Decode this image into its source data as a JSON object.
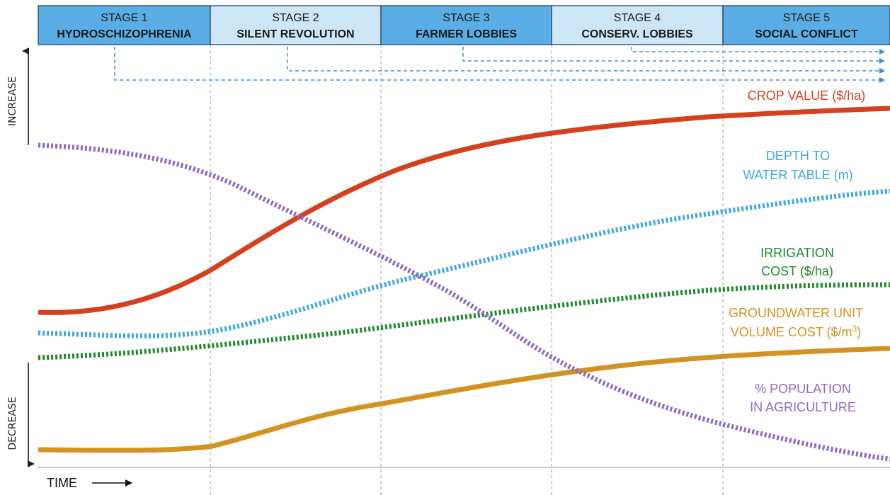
{
  "stages": [
    {
      "number": "STAGE 1",
      "name": "HYDROSCHIZOPHRENIA",
      "fill": "#5aaee5"
    },
    {
      "number": "STAGE 2",
      "name": "SILENT REVOLUTION",
      "fill": "#cde6f8"
    },
    {
      "number": "STAGE 3",
      "name": "FARMER LOBBIES",
      "fill": "#5aaee5"
    },
    {
      "number": "STAGE 4",
      "name": "CONSERV. LOBBIES",
      "fill": "#cde6f8"
    },
    {
      "number": "STAGE 5",
      "name": "SOCIAL CONFLICT",
      "fill": "#5aaee5"
    }
  ],
  "axis": {
    "increase": "INCREASE",
    "decrease": "DECREASE",
    "time": "TIME"
  },
  "curves": [
    {
      "id": "crop-value",
      "label_lines": [
        "CROP VALUE ($/ha)"
      ],
      "color": "#d3411e",
      "style": "solid"
    },
    {
      "id": "depth-to-water-table",
      "label_lines": [
        "DEPTH TO",
        "WATER TABLE (m)"
      ],
      "color": "#3ea8df",
      "style": "dotted"
    },
    {
      "id": "irrigation-cost",
      "label_lines": [
        "IRRIGATION",
        "COST ($/ha)"
      ],
      "color": "#1f8a2a",
      "style": "dotted"
    },
    {
      "id": "groundwater-unit-volume-cost",
      "label_lines": [
        "GROUNDWATER UNIT",
        "VOLUME COST ($/m",
        "3",
        ")"
      ],
      "color": "#d39322",
      "style": "solid"
    },
    {
      "id": "population-in-agriculture",
      "label_lines": [
        "% POPULATION",
        "IN AGRICULTURE"
      ],
      "color": "#8c6bbf",
      "style": "dotted"
    }
  ],
  "colors": {
    "stage_border": "#1a3550",
    "arrow": "#3a8fd6",
    "grid": "#9a9a9a",
    "axis": "#222222"
  }
}
